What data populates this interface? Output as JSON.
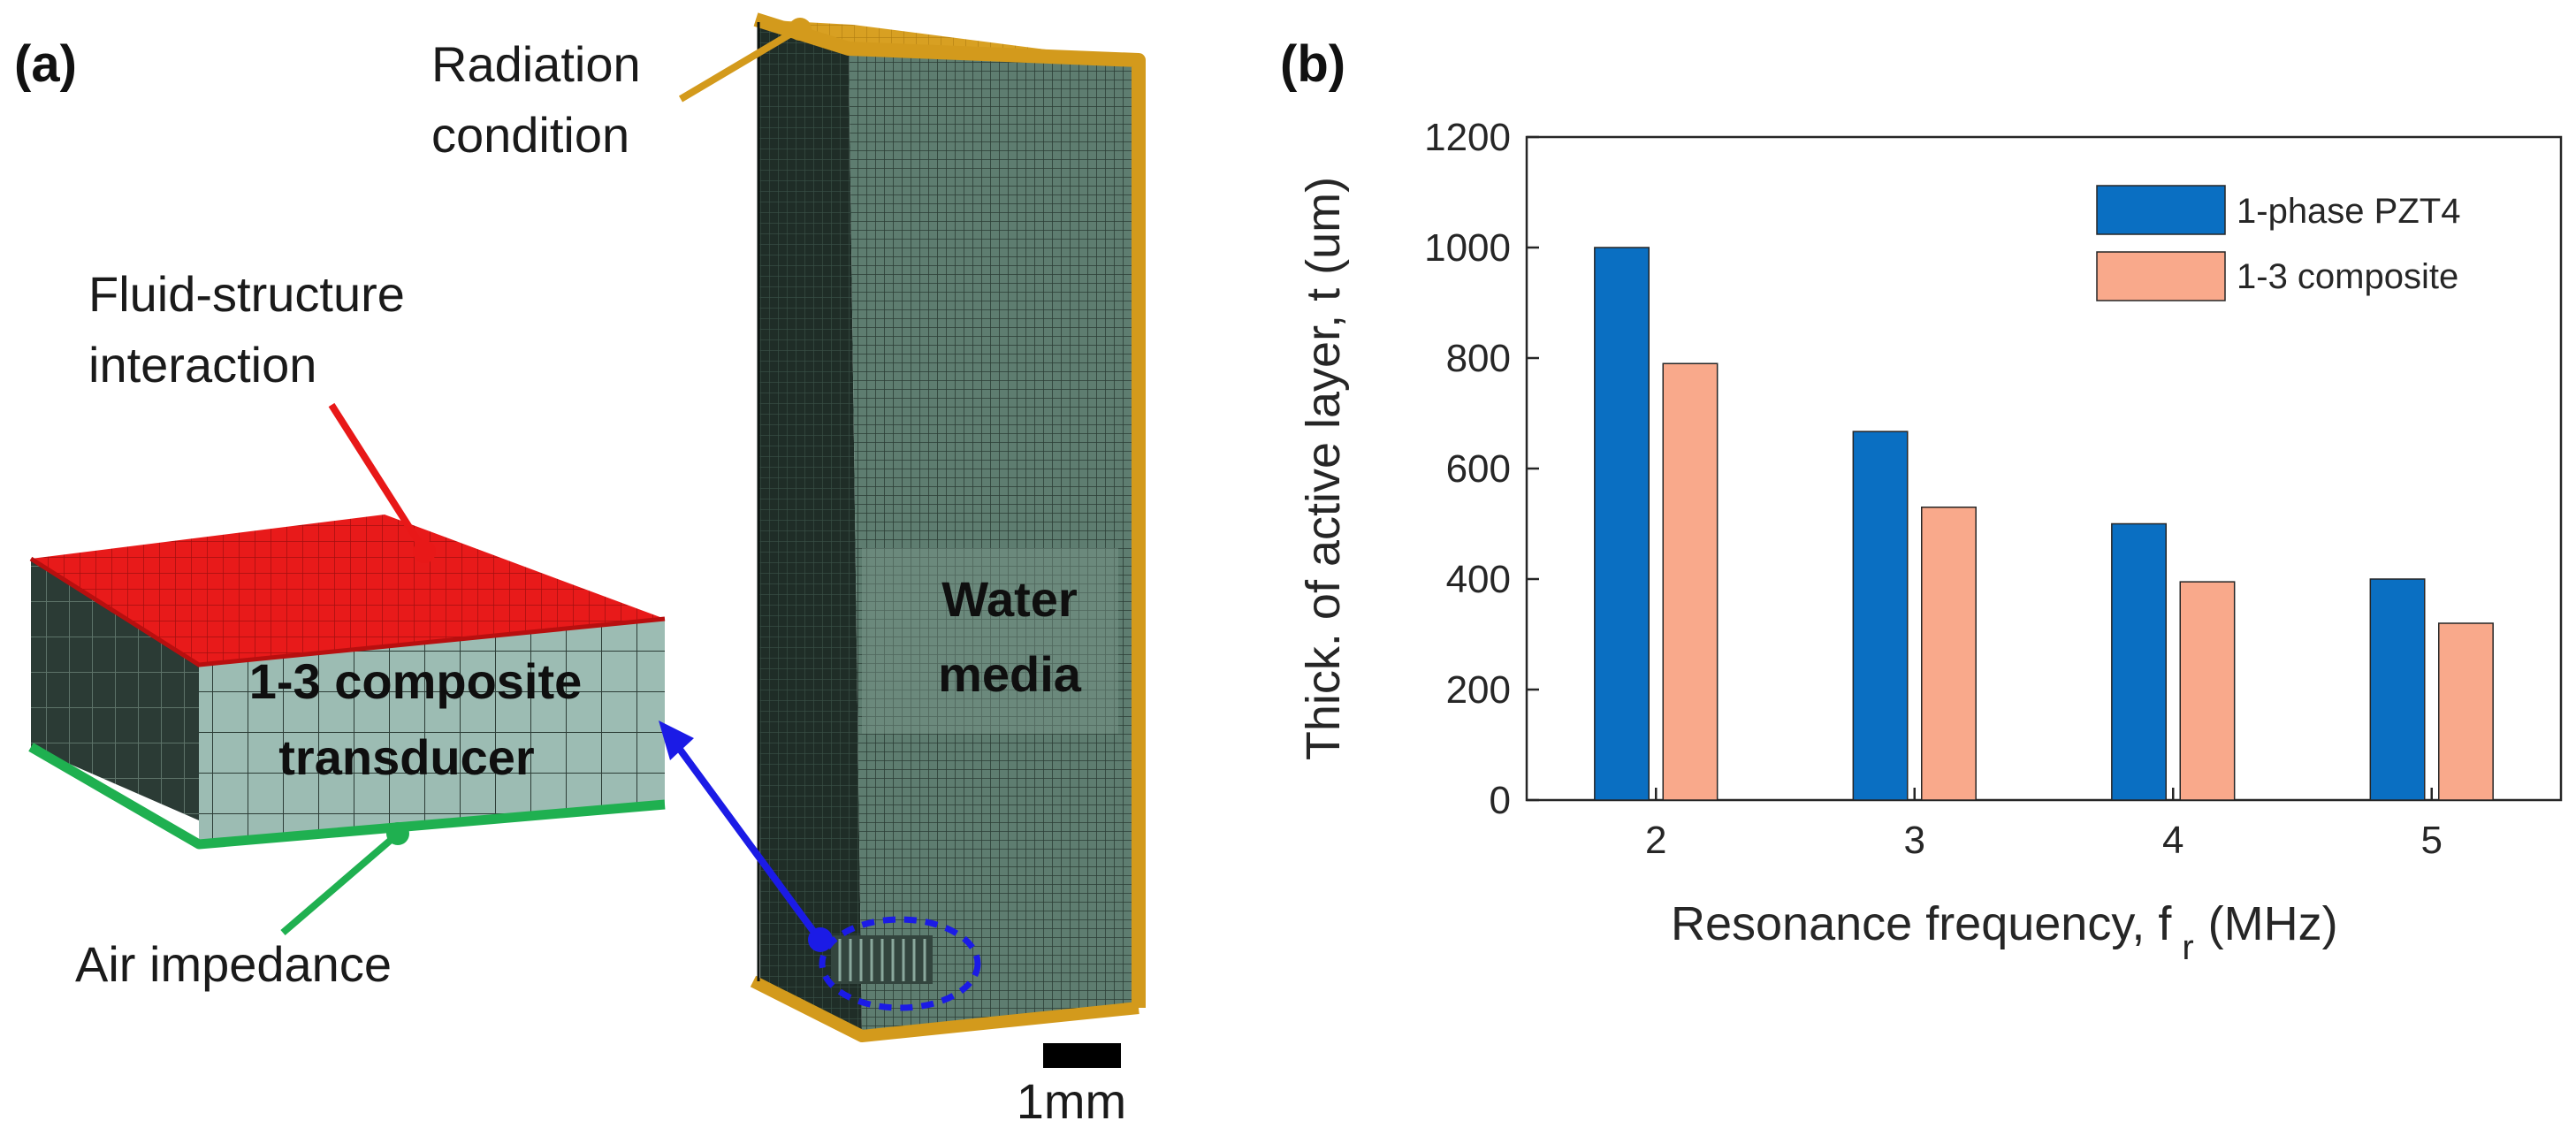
{
  "panel_a": {
    "label": "(a)",
    "radiation_condition": [
      "Radiation",
      "condition"
    ],
    "fluid_structure": [
      "Fluid-structure",
      "interaction"
    ],
    "composite": [
      "1-3 composite",
      "transducer"
    ],
    "air_impedance": "Air impedance",
    "water_media": [
      "Water",
      "media"
    ],
    "scale_bar": "1mm",
    "colors": {
      "radiation": "#d39a1c",
      "fsi": "#e81818",
      "air": "#1fb050",
      "link": "#1b1be6",
      "mesh_face": "#5e7d70",
      "mesh_dark": "#1f2d27",
      "composite_face": "#9cbcb3"
    }
  },
  "panel_b": {
    "label": "(b)"
  },
  "chart_data": {
    "type": "bar",
    "title": "",
    "categories": [
      "2",
      "3",
      "4",
      "5"
    ],
    "series": [
      {
        "name": "1-phase PZT4",
        "color": "#0a6fc2",
        "values": [
          1000,
          667,
          500,
          400
        ]
      },
      {
        "name": "1-3 composite",
        "color": "#f9a98b",
        "values": [
          790,
          530,
          395,
          320
        ]
      }
    ],
    "ylim": [
      0,
      1200
    ],
    "yticks": [
      "0",
      "200",
      "400",
      "600",
      "800",
      "1000",
      "1200"
    ],
    "xlabel": "Resonance frequency, f",
    "xlabel_sub": "r",
    "xlabel_unit": "(MHz)",
    "ylabel": "Thick. of active layer, t (um)",
    "legend_position": "top-right"
  }
}
